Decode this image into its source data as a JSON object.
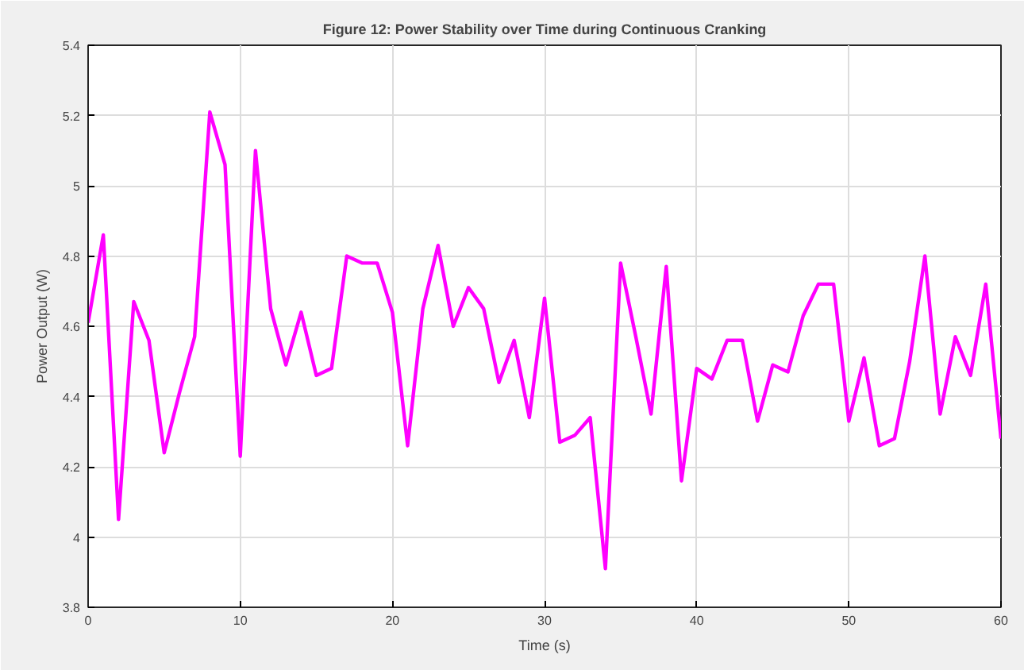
{
  "chart_data": {
    "type": "line",
    "title": "Figure 12: Power Stability over Time during Continuous Cranking",
    "xlabel": "Time (s)",
    "ylabel": "Power Output (W)",
    "x": [
      0,
      1,
      2,
      3,
      4,
      5,
      6,
      7,
      8,
      9,
      10,
      11,
      12,
      13,
      14,
      15,
      16,
      17,
      18,
      19,
      20,
      21,
      22,
      23,
      24,
      25,
      26,
      27,
      28,
      29,
      30,
      31,
      32,
      33,
      34,
      35,
      36,
      37,
      38,
      39,
      40,
      41,
      42,
      43,
      44,
      45,
      46,
      47,
      48,
      49,
      50,
      51,
      52,
      53,
      54,
      55,
      56,
      57,
      58,
      59,
      60
    ],
    "series": [
      {
        "color": "#ff00ff",
        "values": [
          4.61,
          4.86,
          4.05,
          4.67,
          4.56,
          4.24,
          4.41,
          4.57,
          5.21,
          5.06,
          4.23,
          5.1,
          4.65,
          4.49,
          4.64,
          4.46,
          4.48,
          4.8,
          4.78,
          4.78,
          4.64,
          4.26,
          4.65,
          4.83,
          4.6,
          4.71,
          4.65,
          4.44,
          4.56,
          4.34,
          4.68,
          4.27,
          4.29,
          4.34,
          3.91,
          4.78,
          4.57,
          4.35,
          4.77,
          4.16,
          4.48,
          4.45,
          4.56,
          4.56,
          4.33,
          4.49,
          4.47,
          4.63,
          4.72,
          4.72,
          4.33,
          4.51,
          4.26,
          4.28,
          4.5,
          4.8,
          4.35,
          4.57,
          4.46,
          4.72,
          4.28
        ]
      }
    ],
    "xlim": [
      0,
      60
    ],
    "ylim": [
      3.8,
      5.4
    ],
    "xticks": [
      0,
      10,
      20,
      30,
      40,
      50,
      60
    ],
    "yticks": [
      3.8,
      4,
      4.2,
      4.4,
      4.6,
      4.8,
      5,
      5.2,
      5.4
    ],
    "grid": true,
    "marker": "none",
    "line_style": "solid"
  }
}
